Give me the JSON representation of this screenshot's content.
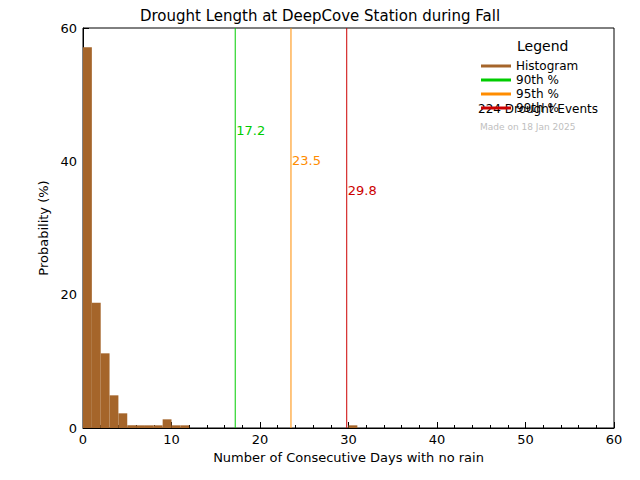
{
  "chart_data": {
    "type": "histogram",
    "title": "Drought Length at DeepCove Station during Fall",
    "x_label": "Number of Consecutive Days with no rain",
    "y_label": "Probability (%)",
    "bins": [
      0,
      1,
      2,
      3,
      4,
      5,
      6,
      7,
      8,
      9,
      10,
      11,
      12,
      13,
      14,
      15,
      16,
      17,
      18,
      19,
      20,
      21,
      22,
      23,
      24,
      25,
      26,
      27,
      28,
      29,
      30,
      31
    ],
    "series": [
      {
        "name": "Histogram",
        "type": "histogram",
        "color": "#a5652a",
        "values": [
          57.1,
          18.8,
          11.2,
          4.9,
          2.2,
          0.4,
          0.4,
          0.4,
          0.4,
          1.3,
          0.4,
          0.4,
          0,
          0,
          0,
          0,
          0,
          0,
          0,
          0,
          0,
          0,
          0,
          0,
          0,
          0,
          0,
          0,
          0,
          0,
          0.4
        ]
      },
      {
        "name": "90th %",
        "type": "vline",
        "color": "#00cc00",
        "values": [
          17.2
        ]
      },
      {
        "name": "95th %",
        "type": "vline",
        "color": "#ff8c00",
        "values": [
          23.5
        ]
      },
      {
        "name": "99th %",
        "type": "vline",
        "color": "#cc0000",
        "values": [
          29.8
        ]
      }
    ],
    "xlim": [
      0,
      60
    ],
    "xticks": [
      0,
      10,
      20,
      30,
      40,
      50,
      60
    ],
    "ylim": [
      0,
      60
    ],
    "yticks": [
      0,
      20,
      40,
      60
    ],
    "grid": false,
    "legend": "upper right",
    "legend_title": "Legend",
    "annotations": [
      "224 Drought Events",
      "Made on 18 Jan 2025"
    ]
  }
}
